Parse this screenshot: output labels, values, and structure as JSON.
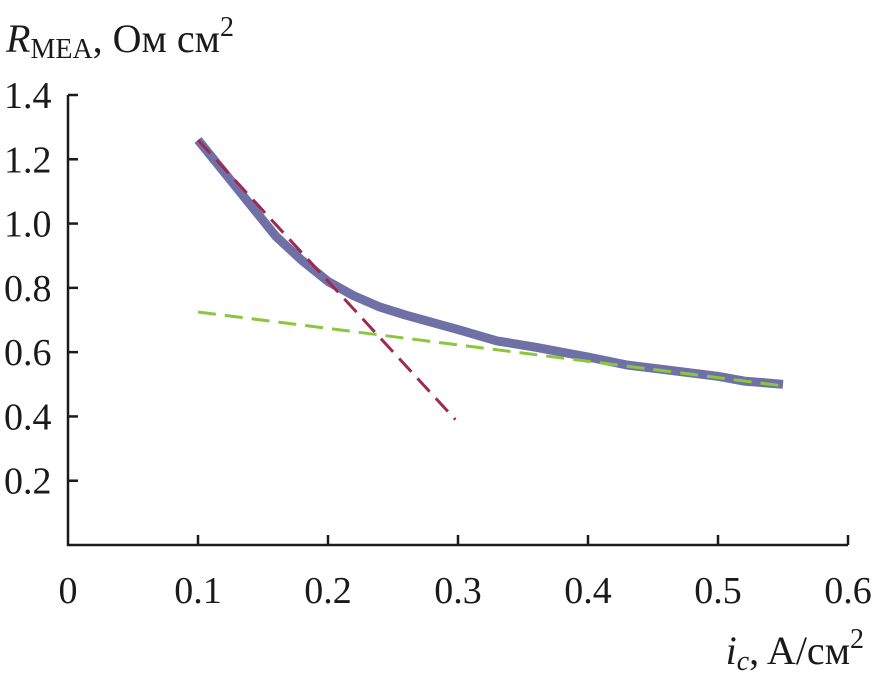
{
  "chart_data": {
    "type": "line",
    "y_axis_label": {
      "symbol": "R",
      "subscript": "MEA",
      "units": ", Ом см",
      "units_superscript": "2"
    },
    "x_axis_label": {
      "symbol": "i",
      "subscript": "c",
      "units": ", A/см",
      "units_superscript": "2"
    },
    "xlim": [
      0,
      0.6
    ],
    "ylim": [
      0,
      1.4
    ],
    "x_ticks": [
      0,
      0.1,
      0.2,
      0.3,
      0.4,
      0.5,
      0.6
    ],
    "x_tick_labels": [
      "0",
      "0.1",
      "0.2",
      "0.3",
      "0.4",
      "0.5",
      "0.6"
    ],
    "y_ticks": [
      0.2,
      0.4,
      0.6,
      0.8,
      1.0,
      1.2,
      1.4
    ],
    "y_tick_labels": [
      "0.2",
      "0.4",
      "0.6",
      "0.8",
      "1.0",
      "1.2",
      "1.4"
    ],
    "grid": false,
    "legend": "none",
    "series": [
      {
        "style": "solid-thick",
        "color": "#6f70a6",
        "x": [
          0.1,
          0.12,
          0.14,
          0.16,
          0.18,
          0.2,
          0.22,
          0.24,
          0.26,
          0.3,
          0.33,
          0.36,
          0.4,
          0.43,
          0.46,
          0.5,
          0.52,
          0.55
        ],
        "y": [
          1.26,
          1.16,
          1.06,
          0.96,
          0.885,
          0.82,
          0.775,
          0.74,
          0.715,
          0.67,
          0.635,
          0.615,
          0.585,
          0.56,
          0.545,
          0.525,
          0.51,
          0.5
        ]
      },
      {
        "style": "dashed",
        "color": "#9e2a52",
        "x": [
          0.1,
          0.298
        ],
        "y": [
          1.26,
          0.39
        ]
      },
      {
        "style": "dashed",
        "color": "#8cc63f",
        "x": [
          0.1,
          0.55
        ],
        "y": [
          0.725,
          0.495
        ]
      }
    ]
  }
}
